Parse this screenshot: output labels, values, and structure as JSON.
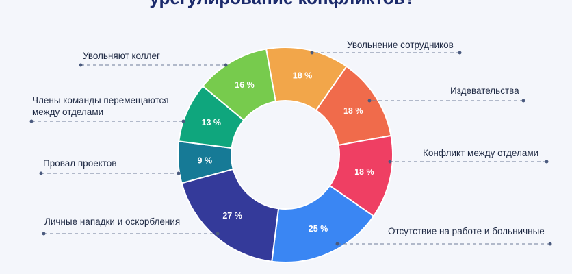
{
  "title": "урегулирование конфликтов?*",
  "chart_data": {
    "type": "pie",
    "donut": true,
    "title": "урегулирование конфликтов?*",
    "slices": [
      {
        "label": "Увольнение сотрудников",
        "value": 18,
        "text": "18 %",
        "color": "#f2a64a"
      },
      {
        "label": "Издевательства",
        "value": 18,
        "text": "18 %",
        "color": "#f06b4b"
      },
      {
        "label": "Конфликт между отделами",
        "value": 18,
        "text": "18 %",
        "color": "#ef3f63"
      },
      {
        "label": "Отсутствие на работе и больничные",
        "value": 25,
        "text": "25 %",
        "color": "#3a86f3"
      },
      {
        "label": "Личные нападки и оскорбления",
        "value": 27,
        "text": "27 %",
        "color": "#343a9a"
      },
      {
        "label": "Провал проектов",
        "value": 9,
        "text": "9 %",
        "color": "#167a96"
      },
      {
        "label": "Члены команды перемещаются\nмежду отделами",
        "value": 13,
        "text": "13 %",
        "color": "#0fa67d"
      },
      {
        "label": "Увольняют коллег",
        "value": 16,
        "text": "16 %",
        "color": "#77cb4d"
      }
    ]
  }
}
